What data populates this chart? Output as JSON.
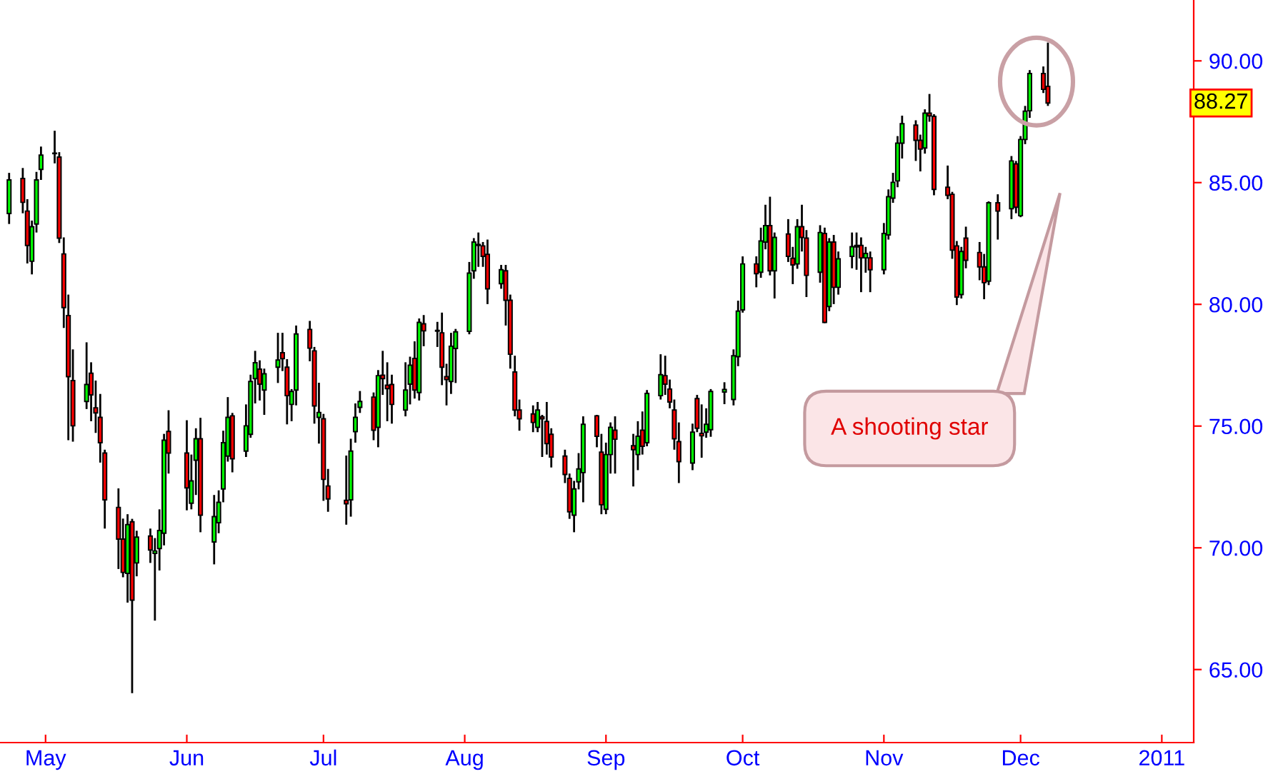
{
  "chart_data": {
    "type": "candlestick",
    "x": [
      "2010-04-23",
      "2010-04-26",
      "2010-04-27",
      "2010-04-28",
      "2010-04-29",
      "2010-04-30",
      "2010-05-03",
      "2010-05-04",
      "2010-05-05",
      "2010-05-06",
      "2010-05-07",
      "2010-05-10",
      "2010-05-11",
      "2010-05-12",
      "2010-05-13",
      "2010-05-14",
      "2010-05-17",
      "2010-05-18",
      "2010-05-19",
      "2010-05-20",
      "2010-05-21",
      "2010-05-24",
      "2010-05-25",
      "2010-05-26",
      "2010-05-27",
      "2010-05-28",
      "2010-06-01",
      "2010-06-02",
      "2010-06-03",
      "2010-06-04",
      "2010-06-07",
      "2010-06-08",
      "2010-06-09",
      "2010-06-10",
      "2010-06-11",
      "2010-06-14",
      "2010-06-15",
      "2010-06-16",
      "2010-06-17",
      "2010-06-18",
      "2010-06-21",
      "2010-06-22",
      "2010-06-23",
      "2010-06-24",
      "2010-06-25",
      "2010-06-28",
      "2010-06-29",
      "2010-06-30",
      "2010-07-01",
      "2010-07-02",
      "2010-07-06",
      "2010-07-07",
      "2010-07-08",
      "2010-07-09",
      "2010-07-12",
      "2010-07-13",
      "2010-07-14",
      "2010-07-15",
      "2010-07-16",
      "2010-07-19",
      "2010-07-20",
      "2010-07-21",
      "2010-07-22",
      "2010-07-23",
      "2010-07-26",
      "2010-07-27",
      "2010-07-28",
      "2010-07-29",
      "2010-07-30",
      "2010-08-02",
      "2010-08-03",
      "2010-08-04",
      "2010-08-05",
      "2010-08-06",
      "2010-08-09",
      "2010-08-10",
      "2010-08-11",
      "2010-08-12",
      "2010-08-13",
      "2010-08-16",
      "2010-08-17",
      "2010-08-18",
      "2010-08-19",
      "2010-08-20",
      "2010-08-23",
      "2010-08-24",
      "2010-08-25",
      "2010-08-26",
      "2010-08-27",
      "2010-08-30",
      "2010-08-31",
      "2010-09-01",
      "2010-09-02",
      "2010-09-03",
      "2010-09-07",
      "2010-09-08",
      "2010-09-09",
      "2010-09-10",
      "2010-09-13",
      "2010-09-14",
      "2010-09-15",
      "2010-09-16",
      "2010-09-17",
      "2010-09-20",
      "2010-09-21",
      "2010-09-22",
      "2010-09-23",
      "2010-09-24",
      "2010-09-27",
      "2010-09-29",
      "2010-09-30",
      "2010-10-01",
      "2010-10-04",
      "2010-10-05",
      "2010-10-06",
      "2010-10-07",
      "2010-10-08",
      "2010-10-11",
      "2010-10-12",
      "2010-10-13",
      "2010-10-14",
      "2010-10-15",
      "2010-10-18",
      "2010-10-19",
      "2010-10-20",
      "2010-10-21",
      "2010-10-22",
      "2010-10-25",
      "2010-10-26",
      "2010-10-27",
      "2010-10-28",
      "2010-10-29",
      "2010-11-01",
      "2010-11-02",
      "2010-11-03",
      "2010-11-04",
      "2010-11-05",
      "2010-11-08",
      "2010-11-09",
      "2010-11-10",
      "2010-11-11",
      "2010-11-12",
      "2010-11-15",
      "2010-11-16",
      "2010-11-17",
      "2010-11-18",
      "2010-11-19",
      "2010-11-22",
      "2010-11-23",
      "2010-11-24",
      "2010-11-26",
      "2010-11-29",
      "2010-11-30",
      "2010-12-01",
      "2010-12-02",
      "2010-12-03",
      "2010-12-06",
      "2010-12-07"
    ],
    "ohlc": [
      [
        83.73,
        85.4,
        83.3,
        85.11
      ],
      [
        85.17,
        85.6,
        83.74,
        84.19
      ],
      [
        83.83,
        84.32,
        81.68,
        82.42
      ],
      [
        81.77,
        83.44,
        81.23,
        83.19
      ],
      [
        83.3,
        85.44,
        82.95,
        85.11
      ],
      [
        85.54,
        86.48,
        85.11,
        86.13
      ],
      [
        86.19,
        87.13,
        85.79,
        86.21
      ],
      [
        86.05,
        86.25,
        82.52,
        82.72
      ],
      [
        82.07,
        82.75,
        79.03,
        79.87
      ],
      [
        79.54,
        80.4,
        74.42,
        77.03
      ],
      [
        76.87,
        78.15,
        74.36,
        75.01
      ],
      [
        76.01,
        78.44,
        75.7,
        76.71
      ],
      [
        77.17,
        77.62,
        75.2,
        76.28
      ],
      [
        75.75,
        76.87,
        74.72,
        75.54
      ],
      [
        75.36,
        76.32,
        73.5,
        74.32
      ],
      [
        73.89,
        74.03,
        70.79,
        71.97
      ],
      [
        71.66,
        72.44,
        69.13,
        70.36
      ],
      [
        70.36,
        71.2,
        68.79,
        68.99
      ],
      [
        68.95,
        71.38,
        67.75,
        70.95
      ],
      [
        71.07,
        71.19,
        64.03,
        67.85
      ],
      [
        69.38,
        70.7,
        68.83,
        70.44
      ],
      [
        70.48,
        70.79,
        69.38,
        69.91
      ],
      [
        69.77,
        70.4,
        67.01,
        69.87
      ],
      [
        69.97,
        71.58,
        69.07,
        70.71
      ],
      [
        70.6,
        74.68,
        70.1,
        74.42
      ],
      [
        74.78,
        75.65,
        73.05,
        73.89
      ],
      [
        73.89,
        75.24,
        71.54,
        72.46
      ],
      [
        71.83,
        73.83,
        71.58,
        72.75
      ],
      [
        73.6,
        74.91,
        72.17,
        74.48
      ],
      [
        74.48,
        75.34,
        70.64,
        71.34
      ],
      [
        70.24,
        72.17,
        69.32,
        71.28
      ],
      [
        71.03,
        72.36,
        70.6,
        71.87
      ],
      [
        72.42,
        74.81,
        71.87,
        74.32
      ],
      [
        73.77,
        76.19,
        73.54,
        75.36
      ],
      [
        75.42,
        75.54,
        73.1,
        73.66
      ],
      [
        73.97,
        75.89,
        73.73,
        75.01
      ],
      [
        74.66,
        77.11,
        74.52,
        76.83
      ],
      [
        76.95,
        78.09,
        75.93,
        77.6
      ],
      [
        77.34,
        77.7,
        76.05,
        76.72
      ],
      [
        76.48,
        77.36,
        75.46,
        77.15
      ],
      [
        77.42,
        78.83,
        76.77,
        77.71
      ],
      [
        78.01,
        78.83,
        77.26,
        77.77
      ],
      [
        77.42,
        77.75,
        75.07,
        76.25
      ],
      [
        75.89,
        76.52,
        75.2,
        76.42
      ],
      [
        76.48,
        79.13,
        75.85,
        78.78
      ],
      [
        78.97,
        79.32,
        77.66,
        78.2
      ],
      [
        78.09,
        78.25,
        75.1,
        75.83
      ],
      [
        75.36,
        76.78,
        74.28,
        75.56
      ],
      [
        75.3,
        75.5,
        71.93,
        72.81
      ],
      [
        72.54,
        73.24,
        71.48,
        72.01
      ],
      [
        71.95,
        73.79,
        70.95,
        71.81
      ],
      [
        71.97,
        74.48,
        71.28,
        73.97
      ],
      [
        74.77,
        75.93,
        74.32,
        75.36
      ],
      [
        75.77,
        76.44,
        75.54,
        76.01
      ],
      [
        76.19,
        76.38,
        74.42,
        74.83
      ],
      [
        74.95,
        77.3,
        74.13,
        77.07
      ],
      [
        77.09,
        78.09,
        76.28,
        76.95
      ],
      [
        76.68,
        77.62,
        75.2,
        76.54
      ],
      [
        76.71,
        77.11,
        75.1,
        75.89
      ],
      [
        75.66,
        77.62,
        75.4,
        76.48
      ],
      [
        76.72,
        77.85,
        75.89,
        77.5
      ],
      [
        77.78,
        78.48,
        76.13,
        76.48
      ],
      [
        76.38,
        79.42,
        76.05,
        79.26
      ],
      [
        79.2,
        79.56,
        78.28,
        78.91
      ],
      [
        78.93,
        79.28,
        78.25,
        78.9
      ],
      [
        78.83,
        79.66,
        76.68,
        77.42
      ],
      [
        77.03,
        77.56,
        75.85,
        76.91
      ],
      [
        76.83,
        78.83,
        76.32,
        78.28
      ],
      [
        78.19,
        78.99,
        76.77,
        78.87
      ],
      [
        78.89,
        81.74,
        78.77,
        81.28
      ],
      [
        81.38,
        82.72,
        81.05,
        82.56
      ],
      [
        82.42,
        82.95,
        81.54,
        82.46
      ],
      [
        82.4,
        82.56,
        81.54,
        81.97
      ],
      [
        82.05,
        82.66,
        80.01,
        80.64
      ],
      [
        80.85,
        81.62,
        80.64,
        81.42
      ],
      [
        81.38,
        81.62,
        79.13,
        80.17
      ],
      [
        80.17,
        80.4,
        77.36,
        77.95
      ],
      [
        77.22,
        77.89,
        75.4,
        75.66
      ],
      [
        75.66,
        76.09,
        74.81,
        75.3
      ],
      [
        75.5,
        75.85,
        74.75,
        75.15
      ],
      [
        74.95,
        75.99,
        74.75,
        75.66
      ],
      [
        75.38,
        75.46,
        73.73,
        75.3
      ],
      [
        75.19,
        75.99,
        73.83,
        74.28
      ],
      [
        74.66,
        74.91,
        73.3,
        73.73
      ],
      [
        73.77,
        74.03,
        72.66,
        73.01
      ],
      [
        72.85,
        73.05,
        71.19,
        71.48
      ],
      [
        71.34,
        72.75,
        70.64,
        72.42
      ],
      [
        72.71,
        73.89,
        72.4,
        73.24
      ],
      [
        73.09,
        75.4,
        71.87,
        75.07
      ],
      [
        75.42,
        75.46,
        74.13,
        74.58
      ],
      [
        73.93,
        74.68,
        71.38,
        71.77
      ],
      [
        71.58,
        74.32,
        71.38,
        73.83
      ],
      [
        73.83,
        75.15,
        73.05,
        74.95
      ],
      [
        74.83,
        75.4,
        73.05,
        74.46
      ],
      [
        74.19,
        74.68,
        72.52,
        74.03
      ],
      [
        73.83,
        75.2,
        73.19,
        74.58
      ],
      [
        74.83,
        75.6,
        73.83,
        74.17
      ],
      [
        74.32,
        76.48,
        74.17,
        76.34
      ],
      [
        76.25,
        77.95,
        76.09,
        77.11
      ],
      [
        77.07,
        77.89,
        76.28,
        76.72
      ],
      [
        76.52,
        76.91,
        75.73,
        75.99
      ],
      [
        75.66,
        76.09,
        74.03,
        74.48
      ],
      [
        74.36,
        75.15,
        72.66,
        73.54
      ],
      [
        73.48,
        75.1,
        73.19,
        74.75
      ],
      [
        76.13,
        76.28,
        74.75,
        74.91
      ],
      [
        74.7,
        75.89,
        73.7,
        74.6
      ],
      [
        74.75,
        75.73,
        74.52,
        75.07
      ],
      [
        74.85,
        76.52,
        74.56,
        76.42
      ],
      [
        76.4,
        76.8,
        75.9,
        76.5
      ],
      [
        76.09,
        78.15,
        75.85,
        77.89
      ],
      [
        77.85,
        80.15,
        77.46,
        79.72
      ],
      [
        79.77,
        81.97,
        79.66,
        81.66
      ],
      [
        81.66,
        81.97,
        80.7,
        81.26
      ],
      [
        81.32,
        83.15,
        81.09,
        82.6
      ],
      [
        82.56,
        84.09,
        82.26,
        83.23
      ],
      [
        83.23,
        84.42,
        81.19,
        81.38
      ],
      [
        81.38,
        82.95,
        80.24,
        82.75
      ],
      [
        82.89,
        83.5,
        81.74,
        81.97
      ],
      [
        81.89,
        82.36,
        80.83,
        81.62
      ],
      [
        81.66,
        83.5,
        81.46,
        83.19
      ],
      [
        83.19,
        84.09,
        82.17,
        82.75
      ],
      [
        82.72,
        83.05,
        80.3,
        81.19
      ],
      [
        81.32,
        83.25,
        80.89,
        82.95
      ],
      [
        82.91,
        83.15,
        79.23,
        79.26
      ],
      [
        79.91,
        82.72,
        79.72,
        82.56
      ],
      [
        82.56,
        82.85,
        80.01,
        80.7
      ],
      [
        80.7,
        82.17,
        80.4,
        81.87
      ],
      [
        81.97,
        82.95,
        81.48,
        82.37
      ],
      [
        82.36,
        82.95,
        81.42,
        82.42
      ],
      [
        82.42,
        82.75,
        80.5,
        81.91
      ],
      [
        81.91,
        82.36,
        81.3,
        82.09
      ],
      [
        81.91,
        82.17,
        80.5,
        81.42
      ],
      [
        81.42,
        83.34,
        81.23,
        82.91
      ],
      [
        82.85,
        84.72,
        82.66,
        84.42
      ],
      [
        84.36,
        85.4,
        84.17,
        85.01
      ],
      [
        85.07,
        86.91,
        84.81,
        86.62
      ],
      [
        86.62,
        87.75,
        85.99,
        87.42
      ],
      [
        87.36,
        87.56,
        85.89,
        86.74
      ],
      [
        86.74,
        86.97,
        85.46,
        86.38
      ],
      [
        86.42,
        88.01,
        86.19,
        87.85
      ],
      [
        87.85,
        88.64,
        87.5,
        87.74
      ],
      [
        87.72,
        87.81,
        84.48,
        84.72
      ],
      [
        84.81,
        85.7,
        84.32,
        84.48
      ],
      [
        84.52,
        84.62,
        81.87,
        82.23
      ],
      [
        82.4,
        82.6,
        79.97,
        80.3
      ],
      [
        80.4,
        82.36,
        80.24,
        82.17
      ],
      [
        82.72,
        83.19,
        81.48,
        81.81
      ],
      [
        82.13,
        82.56,
        80.99,
        81.54
      ],
      [
        81.54,
        82.07,
        80.21,
        80.89
      ],
      [
        80.95,
        84.23,
        80.79,
        84.17
      ],
      [
        84.17,
        84.52,
        82.66,
        83.83
      ],
      [
        83.93,
        86.09,
        83.5,
        85.89
      ],
      [
        85.77,
        85.89,
        83.74,
        83.99
      ],
      [
        83.64,
        86.91,
        83.58,
        86.77
      ],
      [
        86.77,
        88.15,
        86.58,
        87.93
      ],
      [
        87.95,
        89.62,
        87.66,
        89.48
      ],
      [
        89.48,
        89.77,
        88.68,
        88.83
      ],
      [
        88.95,
        90.75,
        88.15,
        88.27
      ]
    ],
    "colors": [
      "#00ff00",
      "#ff0000",
      "#ff0000",
      "#00ff00",
      "#00ff00",
      "#00ff00",
      "#00ff00",
      "#ff0000",
      "#ff0000",
      "#ff0000",
      "#ff0000",
      "#00ff00",
      "#ff0000",
      "#ff0000",
      "#ff0000",
      "#ff0000",
      "#ff0000",
      "#ff0000",
      "#00ff00",
      "#ff0000",
      "#00ff00",
      "#ff0000",
      "#00ff00",
      "#00ff00",
      "#00ff00",
      "#ff0000",
      "#ff0000",
      "#00ff00",
      "#00ff00",
      "#ff0000",
      "#00ff00",
      "#00ff00",
      "#00ff00",
      "#00ff00",
      "#ff0000",
      "#00ff00",
      "#00ff00",
      "#00ff00",
      "#ff0000",
      "#00ff00",
      "#00ff00",
      "#ff0000",
      "#ff0000",
      "#00ff00",
      "#00ff00",
      "#ff0000",
      "#ff0000",
      "#00ff00",
      "#ff0000",
      "#ff0000",
      "#ff0000",
      "#00ff00",
      "#00ff00",
      "#00ff00",
      "#ff0000",
      "#00ff00",
      "#ff0000",
      "#ff0000",
      "#ff0000",
      "#00ff00",
      "#00ff00",
      "#ff0000",
      "#00ff00",
      "#ff0000",
      "#ff0000",
      "#ff0000",
      "#ff0000",
      "#00ff00",
      "#00ff00",
      "#00ff00",
      "#00ff00",
      "#00ff00",
      "#ff0000",
      "#ff0000",
      "#00ff00",
      "#ff0000",
      "#ff0000",
      "#ff0000",
      "#ff0000",
      "#ff0000",
      "#00ff00",
      "#ff0000",
      "#ff0000",
      "#ff0000",
      "#ff0000",
      "#ff0000",
      "#00ff00",
      "#00ff00",
      "#00ff00",
      "#ff0000",
      "#ff0000",
      "#00ff00",
      "#00ff00",
      "#ff0000",
      "#ff0000",
      "#00ff00",
      "#ff0000",
      "#00ff00",
      "#00ff00",
      "#ff0000",
      "#ff0000",
      "#ff0000",
      "#ff0000",
      "#00ff00",
      "#ff0000",
      "#ff0000",
      "#00ff00",
      "#00ff00",
      "#00ff00",
      "#00ff00",
      "#00ff00",
      "#00ff00",
      "#ff0000",
      "#00ff00",
      "#00ff00",
      "#ff0000",
      "#00ff00",
      "#ff0000",
      "#ff0000",
      "#00ff00",
      "#ff0000",
      "#ff0000",
      "#00ff00",
      "#ff0000",
      "#00ff00",
      "#ff0000",
      "#00ff00",
      "#00ff00",
      "#00ff00",
      "#ff0000",
      "#00ff00",
      "#ff0000",
      "#00ff00",
      "#00ff00",
      "#00ff00",
      "#00ff00",
      "#00ff00",
      "#ff0000",
      "#ff0000",
      "#00ff00",
      "#ff0000",
      "#ff0000",
      "#ff0000",
      "#ff0000",
      "#ff0000",
      "#00ff00",
      "#ff0000",
      "#ff0000",
      "#ff0000",
      "#00ff00",
      "#ff0000",
      "#00ff00",
      "#ff0000",
      "#00ff00",
      "#00ff00",
      "#00ff00",
      "#ff0000",
      "#ff0000"
    ],
    "xlim": [
      "2010-04-21",
      "2011-01-08"
    ],
    "xticks": [
      {
        "value": "2010-05-01",
        "label": "May"
      },
      {
        "value": "2010-06-01",
        "label": "Jun"
      },
      {
        "value": "2010-07-01",
        "label": "Jul"
      },
      {
        "value": "2010-08-01",
        "label": "Aug"
      },
      {
        "value": "2010-09-01",
        "label": "Sep"
      },
      {
        "value": "2010-10-01",
        "label": "Oct"
      },
      {
        "value": "2010-11-01",
        "label": "Nov"
      },
      {
        "value": "2010-12-01",
        "label": "Dec"
      },
      {
        "value": "2011-01-01",
        "label": "2011"
      }
    ],
    "ylim": [
      62,
      92.5
    ],
    "yticks": [
      {
        "value": 65,
        "label": "65.00"
      },
      {
        "value": 70,
        "label": "70.00"
      },
      {
        "value": 75,
        "label": "75.00"
      },
      {
        "value": 80,
        "label": "80.00"
      },
      {
        "value": 85,
        "label": "85.00"
      },
      {
        "value": 90,
        "label": "90.00"
      }
    ],
    "annotations": [
      "A shooting star",
      "88.27"
    ],
    "grid": false,
    "legend": false
  }
}
